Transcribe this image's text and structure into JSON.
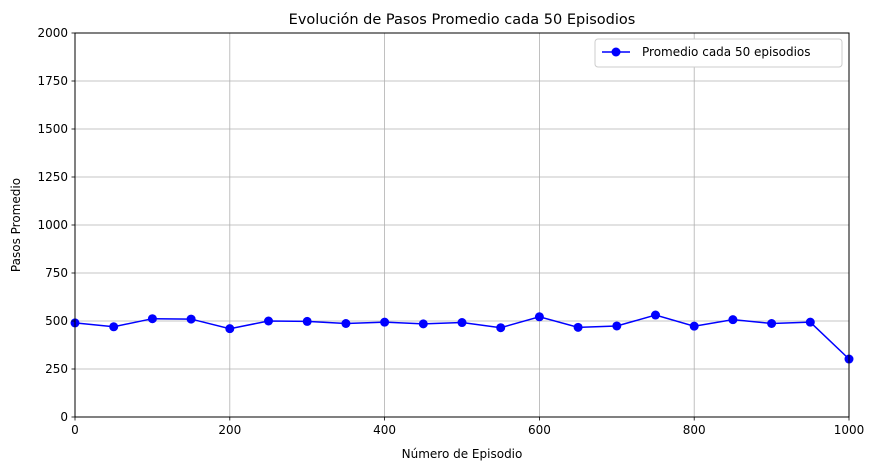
{
  "chart_data": {
    "type": "line",
    "title": "Evolución de Pasos Promedio cada 50 Episodios",
    "xlabel": "Número de Episodio",
    "ylabel": "Pasos Promedio",
    "xlim": [
      0,
      1000
    ],
    "ylim": [
      0,
      2000
    ],
    "xticks": [
      0,
      200,
      400,
      600,
      800,
      1000
    ],
    "yticks": [
      0,
      250,
      500,
      750,
      1000,
      1250,
      1500,
      1750,
      2000
    ],
    "grid": true,
    "legend_position": "top-right",
    "series": [
      {
        "name": "Promedio cada 50 episodios",
        "color": "#0000ff",
        "marker": "circle",
        "x": [
          0,
          50,
          100,
          150,
          200,
          250,
          300,
          350,
          400,
          450,
          500,
          550,
          600,
          650,
          700,
          750,
          800,
          850,
          900,
          950,
          1000
        ],
        "y": [
          490,
          470,
          512,
          510,
          460,
          500,
          498,
          487,
          494,
          485,
          492,
          465,
          522,
          467,
          474,
          531,
          473,
          507,
          487,
          494,
          302
        ]
      }
    ]
  }
}
